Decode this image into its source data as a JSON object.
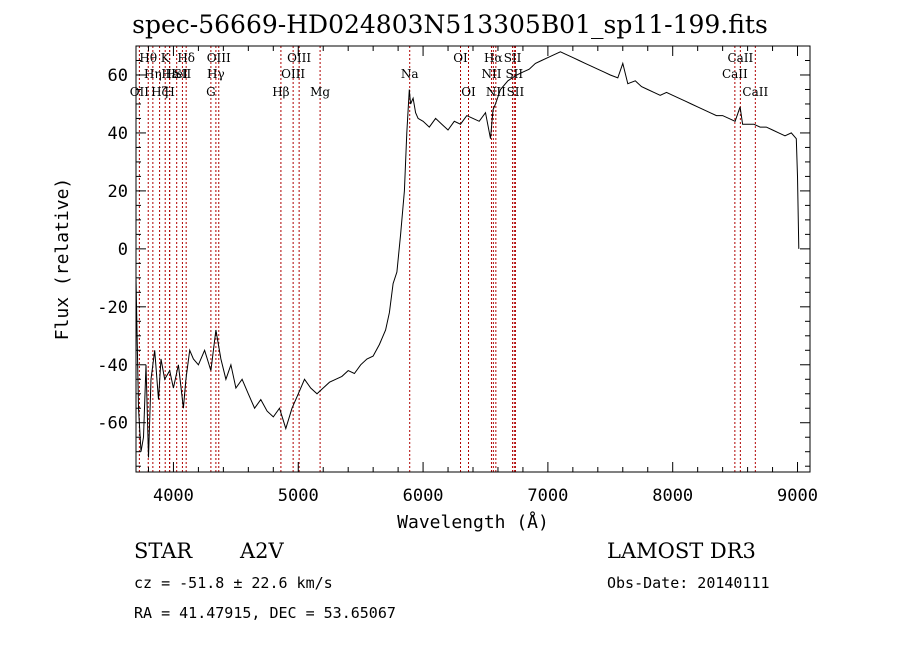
{
  "chart_data": {
    "type": "line",
    "title": "spec-56669-HD024803N513305B01_sp11-199.fits",
    "xlabel": "Wavelength (Å)",
    "ylabel": "Flux (relative)",
    "xlim": [
      3700,
      9100
    ],
    "ylim": [
      -77,
      70
    ],
    "xticks": [
      4000,
      5000,
      6000,
      7000,
      8000,
      9000
    ],
    "yticks": [
      -60,
      -40,
      -20,
      0,
      20,
      40,
      60
    ],
    "grid": false,
    "series": [
      {
        "x": [
          3700,
          3720,
          3740,
          3760,
          3780,
          3800,
          3820,
          3850,
          3880,
          3900,
          3930,
          3970,
          4000,
          4040,
          4080,
          4100,
          4130,
          4160,
          4200,
          4250,
          4300,
          4340,
          4380,
          4420,
          4460,
          4500,
          4550,
          4600,
          4650,
          4700,
          4750,
          4800,
          4850,
          4900,
          4950,
          5000,
          5050,
          5100,
          5150,
          5200,
          5250,
          5300,
          5350,
          5400,
          5450,
          5500,
          5550,
          5600,
          5650,
          5700,
          5730,
          5760,
          5790,
          5820,
          5850,
          5870,
          5890,
          5900,
          5920,
          5940,
          5960,
          6000,
          6050,
          6100,
          6150,
          6200,
          6250,
          6300,
          6350,
          6400,
          6450,
          6500,
          6540,
          6560,
          6580,
          6620,
          6680,
          6750,
          6800,
          6850,
          6900,
          6950,
          7000,
          7050,
          7100,
          7150,
          7200,
          7250,
          7300,
          7350,
          7400,
          7450,
          7500,
          7560,
          7600,
          7640,
          7700,
          7750,
          7800,
          7850,
          7900,
          7950,
          8000,
          8050,
          8100,
          8150,
          8200,
          8250,
          8300,
          8350,
          8400,
          8450,
          8500,
          8540,
          8560,
          8600,
          8650,
          8700,
          8750,
          8800,
          8850,
          8900,
          8950,
          8990,
          9000,
          9010
        ],
        "y": [
          -10,
          -55,
          -70,
          -65,
          -40,
          -72,
          -45,
          -35,
          -52,
          -38,
          -45,
          -42,
          -48,
          -40,
          -55,
          -45,
          -35,
          -38,
          -40,
          -35,
          -42,
          -28,
          -38,
          -45,
          -40,
          -48,
          -45,
          -50,
          -55,
          -52,
          -56,
          -58,
          -55,
          -62,
          -55,
          -50,
          -45,
          -48,
          -50,
          -48,
          -46,
          -45,
          -44,
          -42,
          -43,
          -40,
          -38,
          -37,
          -33,
          -28,
          -22,
          -12,
          -8,
          5,
          20,
          40,
          55,
          50,
          52,
          47,
          45,
          44,
          42,
          45,
          43,
          41,
          44,
          43,
          46,
          45,
          44,
          47,
          38,
          48,
          50,
          55,
          58,
          60,
          61,
          62,
          64,
          65,
          66,
          67,
          68,
          67,
          66,
          65,
          64,
          63,
          62,
          61,
          60,
          59,
          64,
          57,
          58,
          56,
          55,
          54,
          53,
          54,
          53,
          52,
          51,
          50,
          49,
          48,
          47,
          46,
          46,
          45,
          44,
          49,
          43,
          43,
          43,
          42,
          42,
          41,
          40,
          39,
          40,
          38,
          25,
          0
        ]
      }
    ],
    "lines": [
      {
        "x": 3727,
        "label": "OII",
        "row": 3
      },
      {
        "x": 3798,
        "label": "Hθ",
        "row": 1
      },
      {
        "x": 3835,
        "label": "Hη",
        "row": 2
      },
      {
        "x": 3889,
        "label": "Hζ",
        "row": 3
      },
      {
        "x": 3934,
        "label": "K",
        "row": 1
      },
      {
        "x": 3969,
        "label": "H",
        "row": 3
      },
      {
        "x": 3970,
        "label": "Hε",
        "row": 2
      },
      {
        "x": 4026,
        "label": "HeI",
        "row": 2
      },
      {
        "x": 4072,
        "label": "SII",
        "row": 2
      },
      {
        "x": 4102,
        "label": "Hδ",
        "row": 1
      },
      {
        "x": 4300,
        "label": "G",
        "row": 3
      },
      {
        "x": 4340,
        "label": "Hγ",
        "row": 2
      },
      {
        "x": 4363,
        "label": "OIII",
        "row": 1
      },
      {
        "x": 4861,
        "label": "Hβ",
        "row": 3
      },
      {
        "x": 4959,
        "label": "OIII",
        "row": 2
      },
      {
        "x": 5007,
        "label": "OIII",
        "row": 1
      },
      {
        "x": 5175,
        "label": "Mg",
        "row": 3
      },
      {
        "x": 5893,
        "label": "Na",
        "row": 2
      },
      {
        "x": 6300,
        "label": "OI",
        "row": 1
      },
      {
        "x": 6364,
        "label": "OI",
        "row": 3
      },
      {
        "x": 6548,
        "label": "NII",
        "row": 2
      },
      {
        "x": 6563,
        "label": "Hα",
        "row": 1
      },
      {
        "x": 6583,
        "label": "NII",
        "row": 3
      },
      {
        "x": 6717,
        "label": "SII",
        "row": 1
      },
      {
        "x": 6731,
        "label": "SII",
        "row": 2
      },
      {
        "x": 6740,
        "label": "SII",
        "row": 3
      },
      {
        "x": 8498,
        "label": "CaII",
        "row": 2
      },
      {
        "x": 8542,
        "label": "CaII",
        "row": 1
      },
      {
        "x": 8662,
        "label": "CaII",
        "row": 3
      }
    ]
  },
  "footer": {
    "object": "STAR",
    "subclass": "A2V",
    "survey": "LAMOST DR3",
    "cz": "cz = -51.8 ± 22.6 km/s",
    "obs_date": "Obs-Date: 20140111",
    "coords": "RA =  41.47915, DEC =  53.65067"
  }
}
